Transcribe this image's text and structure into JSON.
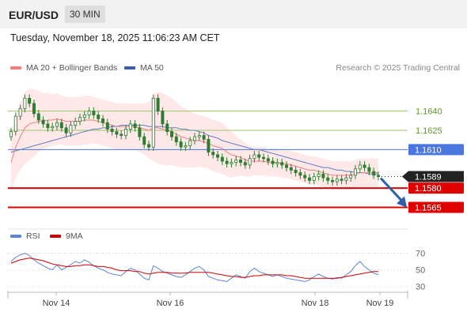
{
  "header": {
    "symbol": "EUR/USD",
    "timeframe": "30 MIN"
  },
  "timestamp": "Tuesday, November 18, 2025 11:06:23 AM CET",
  "copyright": "Research © 2025 Trading Central",
  "colors": {
    "candle": "#2e7d32",
    "ma20": "#f08080",
    "band_fill": "#ffe4e4",
    "ma50": "#5b7fbf",
    "support": "#e00000",
    "pivot": "#4a76e0",
    "resistance": "#9dc46b",
    "rsi": "#5b86d6",
    "rsi_ma": "#d00000",
    "forecast_arrow": "#2e5fa8"
  },
  "chart_data": [
    {
      "type": "candlestick",
      "title": "EUR/USD",
      "legend": [
        "MA 20 + Bollinger Bands",
        "MA 50"
      ],
      "x_ticks": [
        "Nov 14",
        "Nov 16",
        "Nov 18",
        "Nov 19"
      ],
      "ylim": [
        1.1553,
        1.1665
      ],
      "grid": false,
      "current_price": 1.1589,
      "levels": [
        {
          "value": 1.164,
          "label": "1.1640",
          "kind": "resistance"
        },
        {
          "value": 1.1625,
          "label": "1.1625",
          "kind": "resistance"
        },
        {
          "value": 1.161,
          "label": "1.1610",
          "kind": "pivot"
        },
        {
          "value": 1.158,
          "label": "1.1580",
          "kind": "support"
        },
        {
          "value": 1.1565,
          "label": "1.1565",
          "kind": "support"
        }
      ],
      "close": [
        1.1624,
        1.1636,
        1.1642,
        1.165,
        1.1646,
        1.1638,
        1.1633,
        1.163,
        1.1627,
        1.1628,
        1.1631,
        1.1627,
        1.1623,
        1.1629,
        1.1632,
        1.1635,
        1.1637,
        1.164,
        1.1637,
        1.1634,
        1.1631,
        1.1626,
        1.1624,
        1.1622,
        1.1621,
        1.1626,
        1.163,
        1.1627,
        1.162,
        1.1614,
        1.1612,
        1.165,
        1.164,
        1.163,
        1.1624,
        1.162,
        1.1616,
        1.1612,
        1.1613,
        1.1617,
        1.162,
        1.1621,
        1.1618,
        1.1608,
        1.1606,
        1.1604,
        1.1601,
        1.1599,
        1.16,
        1.1602,
        1.16,
        1.1598,
        1.1603,
        1.1606,
        1.1604,
        1.1603,
        1.1601,
        1.1599,
        1.16,
        1.1598,
        1.1596,
        1.1594,
        1.1592,
        1.159,
        1.1588,
        1.1586,
        1.1589,
        1.1591,
        1.1588,
        1.1586,
        1.1585,
        1.1587,
        1.1586,
        1.1588,
        1.159,
        1.1595,
        1.1598,
        1.1596,
        1.1593,
        1.159,
        1.1589
      ],
      "ma20": [
        1.16,
        1.1612,
        1.162,
        1.1627,
        1.163,
        1.1631,
        1.1632,
        1.1632,
        1.1633,
        1.1633,
        1.1634,
        1.1633,
        1.1632,
        1.1632,
        1.1632,
        1.1632,
        1.1633,
        1.1633,
        1.1633,
        1.1632,
        1.1631,
        1.163,
        1.1629,
        1.1628,
        1.1628,
        1.1628,
        1.1628,
        1.1628,
        1.1627,
        1.1626,
        1.1625,
        1.1627,
        1.1627,
        1.1626,
        1.1625,
        1.1624,
        1.1622,
        1.162,
        1.1619,
        1.1618,
        1.1617,
        1.1617,
        1.1616,
        1.1615,
        1.1613,
        1.1612,
        1.1611,
        1.1608,
        1.1606,
        1.1605,
        1.1604,
        1.1602,
        1.1601,
        1.1601,
        1.1601,
        1.1601,
        1.16,
        1.16,
        1.16,
        1.1599,
        1.1599,
        1.1598,
        1.1597,
        1.1596,
        1.1595,
        1.1594,
        1.1594,
        1.1593,
        1.1592,
        1.1591,
        1.159,
        1.159,
        1.159,
        1.159,
        1.159,
        1.1591,
        1.1592,
        1.1592,
        1.1592,
        1.1592,
        1.1592
      ],
      "bollinger_width": [
        0.0022,
        0.0024,
        0.0026,
        0.0028,
        0.0028,
        0.0026,
        0.0024,
        0.0022,
        0.0021,
        0.002,
        0.002,
        0.0019,
        0.0019,
        0.0019,
        0.0019,
        0.0019,
        0.0019,
        0.0019,
        0.0018,
        0.0018,
        0.0018,
        0.0018,
        0.0018,
        0.0018,
        0.0018,
        0.0018,
        0.0018,
        0.0018,
        0.0019,
        0.002,
        0.0022,
        0.0026,
        0.0028,
        0.0028,
        0.0027,
        0.0026,
        0.0025,
        0.0024,
        0.0023,
        0.0022,
        0.0021,
        0.002,
        0.002,
        0.002,
        0.002,
        0.002,
        0.002,
        0.0019,
        0.0018,
        0.0016,
        0.0014,
        0.0013,
        0.0012,
        0.0011,
        0.0011,
        0.0011,
        0.0011,
        0.0011,
        0.0011,
        0.0011,
        0.0011,
        0.0011,
        0.0011,
        0.0011,
        0.0011,
        0.0011,
        0.0011,
        0.0011,
        0.0011,
        0.0011,
        0.0011,
        0.0011,
        0.0011,
        0.0011,
        0.0011,
        0.0011,
        0.0011,
        0.0011,
        0.0011,
        0.0011,
        0.0011
      ],
      "ma50": [
        1.1608,
        1.1609,
        1.161,
        1.1611,
        1.1612,
        1.1613,
        1.1614,
        1.1615,
        1.1616,
        1.1617,
        1.1618,
        1.1619,
        1.162,
        1.1621,
        1.1622,
        1.1623,
        1.1624,
        1.1625,
        1.1626,
        1.1626,
        1.1627,
        1.1627,
        1.1628,
        1.1628,
        1.1629,
        1.1629,
        1.1629,
        1.1629,
        1.1629,
        1.1629,
        1.1628,
        1.1628,
        1.1628,
        1.1628,
        1.1627,
        1.1627,
        1.1627,
        1.1626,
        1.1626,
        1.1625,
        1.1625,
        1.1624,
        1.1623,
        1.1621,
        1.162,
        1.1619,
        1.1617,
        1.1616,
        1.1615,
        1.1614,
        1.1613,
        1.1612,
        1.1611,
        1.161,
        1.161,
        1.1609,
        1.1608,
        1.1607,
        1.1606,
        1.1605,
        1.1604,
        1.1603,
        1.1602,
        1.1601,
        1.16,
        1.1599,
        1.1598,
        1.1597,
        1.1596,
        1.1596,
        1.1595,
        1.1594,
        1.1594,
        1.1593,
        1.1593,
        1.1592,
        1.1592,
        1.1592,
        1.1591,
        1.1591,
        1.1591
      ],
      "forecast": {
        "from": 1.1589,
        "to": 1.1565
      }
    },
    {
      "type": "line",
      "legend": [
        "RSI",
        "9MA"
      ],
      "ylim": [
        25,
        78
      ],
      "y_ticks": [
        70,
        50,
        30
      ],
      "rsi": [
        60,
        65,
        68,
        70,
        67,
        62,
        58,
        55,
        52,
        50,
        56,
        50,
        53,
        56,
        60,
        58,
        62,
        59,
        55,
        52,
        50,
        47,
        45,
        44,
        43,
        48,
        52,
        50,
        45,
        40,
        38,
        55,
        52,
        48,
        46,
        44,
        42,
        41,
        44,
        48,
        52,
        54,
        50,
        42,
        40,
        38,
        37,
        36,
        40,
        44,
        42,
        40,
        48,
        52,
        48,
        46,
        44,
        42,
        44,
        42,
        40,
        39,
        38,
        37,
        36,
        38,
        42,
        45,
        42,
        40,
        39,
        41,
        40,
        44,
        48,
        55,
        60,
        54,
        50,
        46,
        44
      ],
      "rsi_9ma": [
        58,
        60,
        62,
        63,
        64,
        63,
        62,
        61,
        59,
        57,
        56,
        55,
        54,
        54,
        55,
        55,
        56,
        56,
        55,
        54,
        54,
        53,
        52,
        50,
        49,
        49,
        49,
        48,
        48,
        46,
        45,
        46,
        47,
        47,
        47,
        46,
        46,
        46,
        46,
        47,
        47,
        47,
        47,
        47,
        46,
        45,
        44,
        43,
        42,
        42,
        41,
        41,
        42,
        43,
        43,
        44,
        44,
        44,
        44,
        44,
        43,
        43,
        42,
        41,
        40,
        40,
        40,
        40,
        40,
        40,
        40,
        40,
        41,
        42,
        43,
        44,
        45,
        46,
        47,
        48,
        48
      ]
    }
  ]
}
